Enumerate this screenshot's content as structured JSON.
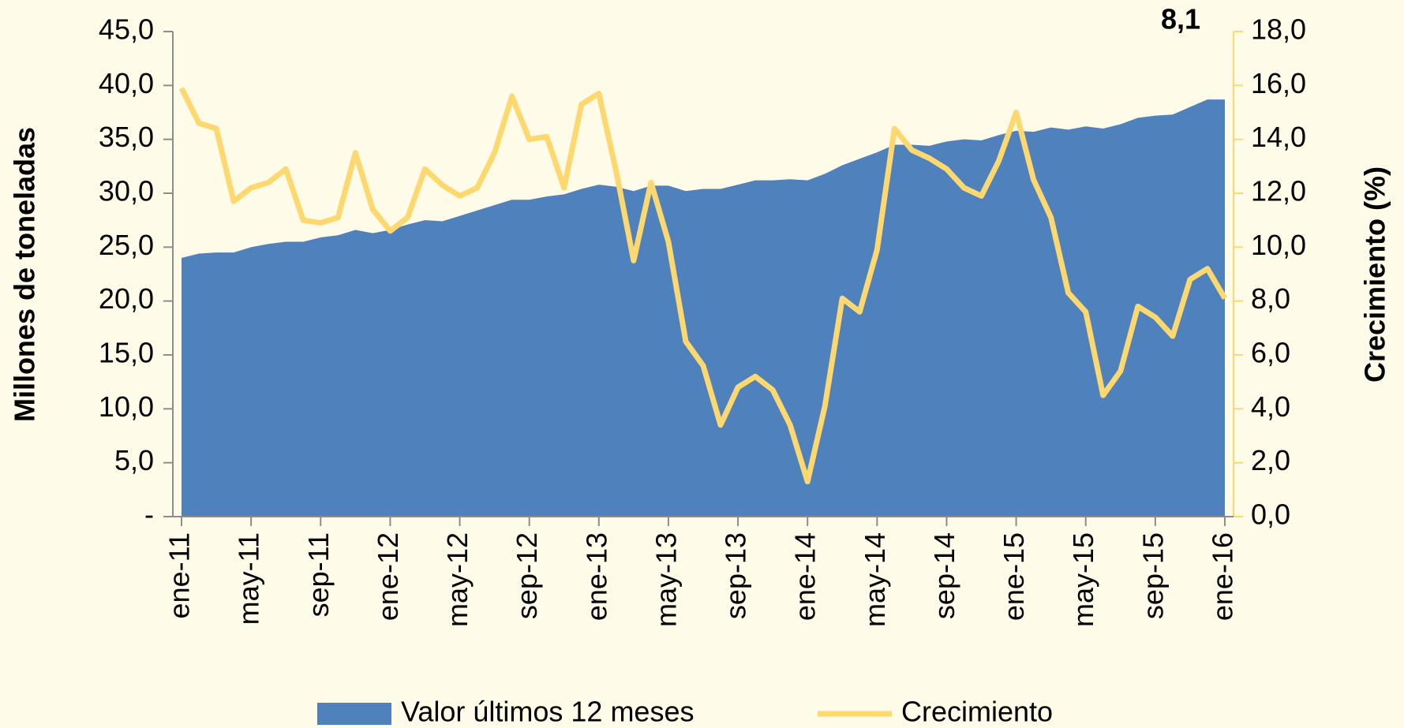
{
  "chart_data": {
    "type": "area-line",
    "annotation": "8,1",
    "y_label": "Millones de toneladas",
    "y2_label": "Crecimiento  (%)",
    "categories": [
      "ene-11",
      null,
      null,
      null,
      "may-11",
      null,
      null,
      null,
      "sep-11",
      null,
      null,
      null,
      "ene-12",
      null,
      null,
      null,
      "may-12",
      null,
      null,
      null,
      "sep-12",
      null,
      null,
      null,
      "ene-13",
      null,
      null,
      null,
      "may-13",
      null,
      null,
      null,
      "sep-13",
      null,
      null,
      null,
      "ene-14",
      null,
      null,
      null,
      "may-14",
      null,
      null,
      null,
      "sep-14",
      null,
      null,
      null,
      "ene-15",
      null,
      null,
      null,
      "may-15",
      null,
      null,
      null,
      "sep-15",
      null,
      null,
      null,
      "ene-16"
    ],
    "series": [
      {
        "name": "Valor últimos 12 meses",
        "color": "#4f81bd",
        "type": "area",
        "values": [
          24.0,
          24.4,
          24.5,
          24.5,
          25.0,
          25.3,
          25.5,
          25.5,
          25.9,
          26.1,
          26.6,
          26.3,
          26.6,
          27.1,
          27.5,
          27.4,
          27.9,
          28.4,
          28.9,
          29.4,
          29.4,
          29.7,
          29.9,
          30.4,
          30.8,
          30.6,
          30.2,
          30.7,
          30.7,
          30.2,
          30.4,
          30.4,
          30.8,
          31.2,
          31.2,
          31.3,
          31.2,
          31.8,
          32.6,
          33.2,
          33.8,
          34.5,
          34.5,
          34.4,
          34.8,
          35.0,
          34.9,
          35.4,
          35.8,
          35.7,
          36.1,
          35.9,
          36.2,
          36.0,
          36.4,
          37.0,
          37.2,
          37.3,
          38.0,
          38.7,
          38.7
        ]
      },
      {
        "name": "Crecimiento",
        "color": "#fdd86e",
        "type": "line",
        "axis": "y2",
        "values": [
          15.9,
          14.6,
          14.4,
          11.7,
          12.2,
          12.4,
          12.9,
          11.0,
          10.9,
          11.1,
          13.5,
          11.4,
          10.6,
          11.1,
          12.9,
          12.3,
          11.9,
          12.2,
          13.5,
          15.6,
          14.0,
          14.1,
          12.2,
          15.3,
          15.7,
          12.8,
          9.5,
          12.4,
          10.2,
          6.5,
          5.6,
          3.4,
          4.8,
          5.2,
          4.7,
          3.4,
          1.3,
          4.1,
          8.1,
          7.6,
          9.9,
          14.4,
          13.6,
          13.3,
          12.9,
          12.2,
          11.9,
          13.2,
          15.0,
          12.5,
          11.1,
          8.3,
          7.6,
          4.5,
          5.4,
          7.8,
          7.4,
          6.7,
          8.8,
          9.2,
          8.1
        ]
      }
    ],
    "ylim": [
      0,
      45
    ],
    "yticks": [
      {
        "value": 0,
        "label": "-"
      },
      {
        "value": 5,
        "label": "5,0"
      },
      {
        "value": 10,
        "label": "10,0"
      },
      {
        "value": 15,
        "label": "15,0"
      },
      {
        "value": 20,
        "label": "20,0"
      },
      {
        "value": 25,
        "label": "25,0"
      },
      {
        "value": 30,
        "label": "30,0"
      },
      {
        "value": 35,
        "label": "35,0"
      },
      {
        "value": 40,
        "label": "40,0"
      },
      {
        "value": 45,
        "label": "45,0"
      }
    ],
    "y2lim": [
      0,
      18
    ],
    "y2ticks": [
      {
        "value": 0,
        "label": "0,0"
      },
      {
        "value": 2,
        "label": "2,0"
      },
      {
        "value": 4,
        "label": "4,0"
      },
      {
        "value": 6,
        "label": "6,0"
      },
      {
        "value": 8,
        "label": "8,0"
      },
      {
        "value": 10,
        "label": "10,0"
      },
      {
        "value": 12,
        "label": "12,0"
      },
      {
        "value": 14,
        "label": "14,0"
      },
      {
        "value": 16,
        "label": "16,0"
      },
      {
        "value": 18,
        "label": "18,0"
      }
    ],
    "y2_color": "#fdd86e",
    "legend": "bottom"
  }
}
